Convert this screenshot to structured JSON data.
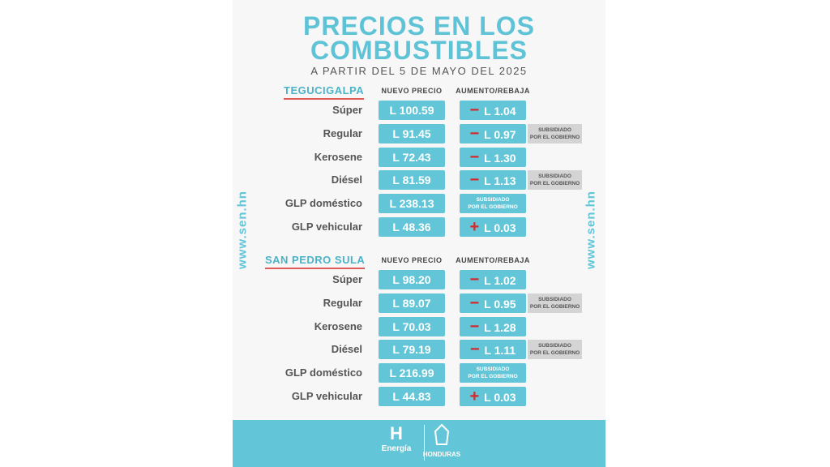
{
  "header": {
    "title_lines": [
      "PRECIOS EN LOS",
      "COMBUSTIBLES"
    ],
    "subtitle": "A PARTIR DEL 5 DE MAYO DEL 2025"
  },
  "side_text": "www.sen.hn",
  "sections": [
    {
      "city": "TEGUCIGALPA",
      "price_header": "NUEVO PRECIO",
      "change_header": "AUMENTO/REBAJA",
      "rows": [
        {
          "fuel": "Súper",
          "price": "L 100.59",
          "sign": "−",
          "change": "L 1.04"
        },
        {
          "fuel": "Regular",
          "price": "L 91.45",
          "sign": "−",
          "change": "L 0.97",
          "note": [
            "SUBSIDIADO",
            "POR EL GOBIERNO"
          ]
        },
        {
          "fuel": "Kerosene",
          "price": "L 72.43",
          "sign": "−",
          "change": "L 1.30"
        },
        {
          "fuel": "Diésel",
          "price": "L 81.59",
          "sign": "−",
          "change": "L 1.13",
          "note": [
            "SUBSIDIADO",
            "POR EL GOBIERNO"
          ]
        },
        {
          "fuel": "GLP doméstico",
          "price": "L 238.13",
          "change_note": [
            "SUBSIDIADO",
            "POR EL GOBIERNO"
          ]
        },
        {
          "fuel": "GLP vehicular",
          "price": "L 48.36",
          "sign": "+",
          "change": "L 0.03"
        }
      ]
    },
    {
      "city": "SAN PEDRO SULA",
      "price_header": "NUEVO PRECIO",
      "change_header": "AUMENTO/REBAJA",
      "rows": [
        {
          "fuel": "Súper",
          "price": "L 98.20",
          "sign": "−",
          "change": "L 1.02"
        },
        {
          "fuel": "Regular",
          "price": "L 89.07",
          "sign": "−",
          "change": "L 0.95",
          "note": [
            "SUBSIDIADO",
            "POR EL GOBIERNO"
          ]
        },
        {
          "fuel": "Kerosene",
          "price": "L 70.03",
          "sign": "−",
          "change": "L 1.28"
        },
        {
          "fuel": "Diésel",
          "price": "L 79.19",
          "sign": "−",
          "change": "L 1.11",
          "note": [
            "SUBSIDIADO",
            "POR EL GOBIERNO"
          ]
        },
        {
          "fuel": "GLP doméstico",
          "price": "L 216.99",
          "change_note": [
            "SUBSIDIADO",
            "POR EL GOBIERNO"
          ]
        },
        {
          "fuel": "GLP vehicular",
          "price": "L 44.83",
          "sign": "+",
          "change": "L 0.03"
        }
      ]
    }
  ],
  "footer": {
    "logo_letter": "H",
    "org": "Energía",
    "country": "HONDURAS"
  }
}
